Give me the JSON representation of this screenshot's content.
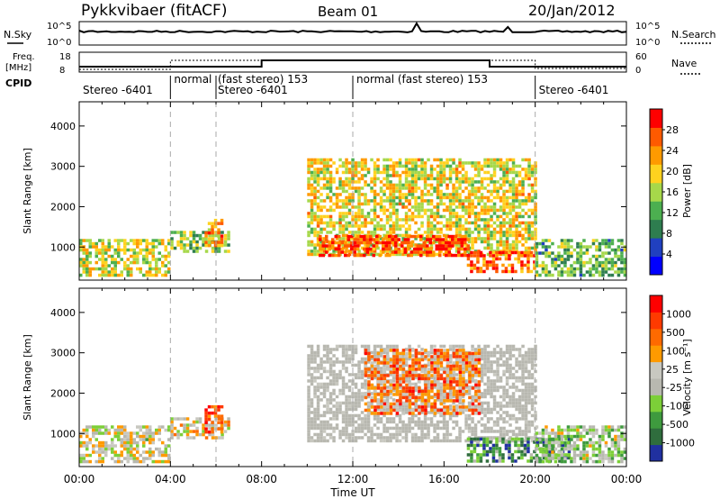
{
  "header": {
    "station": "Pykkvibaer (fitACF)",
    "beam": "Beam 01",
    "date": "20/Jan/2012"
  },
  "noise_panel": {
    "left_label": "N.Sky",
    "right_label": "N.Search",
    "ticks_left": [
      "10^5",
      "10^0"
    ],
    "ticks_right": [
      "10^5",
      "10^0"
    ]
  },
  "freq_panel": {
    "left_label_line1": "Freq.",
    "left_label_line2": "[MHz]",
    "right_label": "Nave",
    "ticks_left": [
      "18",
      "8"
    ],
    "ticks_right": [
      "60",
      "0"
    ]
  },
  "cpid": {
    "label": "CPID",
    "segments": [
      {
        "start": 0,
        "end": 4,
        "text": "Stereo -6401"
      },
      {
        "start": 4,
        "end": 6,
        "text": "normal"
      },
      {
        "start": 6,
        "end": 12,
        "text": "(fast stereo) 153"
      },
      {
        "start": 6,
        "end": 12,
        "text": "Stereo -6401"
      },
      {
        "start": 12,
        "end": 20,
        "text": "normal (fast stereo) 153"
      },
      {
        "start": 20,
        "end": 24,
        "text": "Stereo -6401"
      }
    ]
  },
  "colors": {
    "power": [
      "#0000ff",
      "#2040c0",
      "#2e7d4f",
      "#4caf50",
      "#a6d84a",
      "#ffd21f",
      "#ff9a00",
      "#ff5a00",
      "#ff0000"
    ],
    "velocity": [
      "#2030a0",
      "#2f6d3d",
      "#3e9a3e",
      "#7ccf38",
      "#b8b8b0",
      "#c8c8c0",
      "#ff9a00",
      "#ff6a00",
      "#ff3a00",
      "#ff0000"
    ]
  },
  "chart_data": [
    {
      "type": "heatmap",
      "name": "Power",
      "xlabel": "",
      "ylabel": "Slant Range [km]",
      "x_ticks": [
        "00:00",
        "04:00",
        "08:00",
        "12:00",
        "16:00",
        "20:00",
        "00:00"
      ],
      "xlim": [
        0,
        24
      ],
      "ylim": [
        180,
        4600
      ],
      "y_ticks": [
        1000,
        2000,
        3000,
        4000
      ],
      "colorbar": {
        "label": "Power [dB]",
        "ticks": [
          "4",
          "8",
          "12",
          "16",
          "20",
          "24",
          "28"
        ],
        "range": [
          0,
          32
        ]
      },
      "regions": [
        {
          "t0": 0.0,
          "t1": 4.0,
          "r0": 300,
          "r1": 1200,
          "level": 0.55
        },
        {
          "t0": 4.0,
          "t1": 6.5,
          "r0": 900,
          "r1": 1400,
          "level": 0.45
        },
        {
          "t0": 5.5,
          "t1": 6.3,
          "r0": 1000,
          "r1": 1700,
          "level": 0.75
        },
        {
          "t0": 10.0,
          "t1": 20.0,
          "r0": 800,
          "r1": 3200,
          "level": 0.6
        },
        {
          "t0": 10.5,
          "t1": 17.0,
          "r0": 800,
          "r1": 1300,
          "level": 0.9
        },
        {
          "t0": 17.0,
          "t1": 20.0,
          "r0": 400,
          "r1": 900,
          "level": 0.85
        },
        {
          "t0": 20.0,
          "t1": 24.0,
          "r0": 300,
          "r1": 1200,
          "level": 0.4
        }
      ]
    },
    {
      "type": "heatmap",
      "name": "Velocity",
      "xlabel": "Time UT",
      "ylabel": "Slant Range [km]",
      "x_ticks": [
        "00:00",
        "04:00",
        "08:00",
        "12:00",
        "16:00",
        "20:00",
        "00:00"
      ],
      "xlim": [
        0,
        24
      ],
      "ylim": [
        180,
        4600
      ],
      "y_ticks": [
        1000,
        2000,
        3000,
        4000
      ],
      "colorbar": {
        "label": "Velocity [m s⁻¹]",
        "ticks": [
          "1000",
          "500",
          "100",
          "25",
          "-25",
          "-100",
          "-500",
          "-1000"
        ]
      },
      "regions": [
        {
          "t0": 0.0,
          "t1": 4.0,
          "r0": 300,
          "r1": 1200,
          "level": 0.5
        },
        {
          "t0": 4.0,
          "t1": 6.5,
          "r0": 900,
          "r1": 1400,
          "level": 0.55
        },
        {
          "t0": 5.5,
          "t1": 6.3,
          "r0": 1000,
          "r1": 1700,
          "level": 0.8
        },
        {
          "t0": 10.0,
          "t1": 20.0,
          "r0": 800,
          "r1": 3200,
          "level": 0.5
        },
        {
          "t0": 12.5,
          "t1": 17.5,
          "r0": 1500,
          "r1": 3100,
          "level": 0.75
        },
        {
          "t0": 17.0,
          "t1": 21.5,
          "r0": 300,
          "r1": 900,
          "level": 0.2
        },
        {
          "t0": 20.0,
          "t1": 24.0,
          "r0": 300,
          "r1": 1200,
          "level": 0.4
        }
      ]
    }
  ]
}
